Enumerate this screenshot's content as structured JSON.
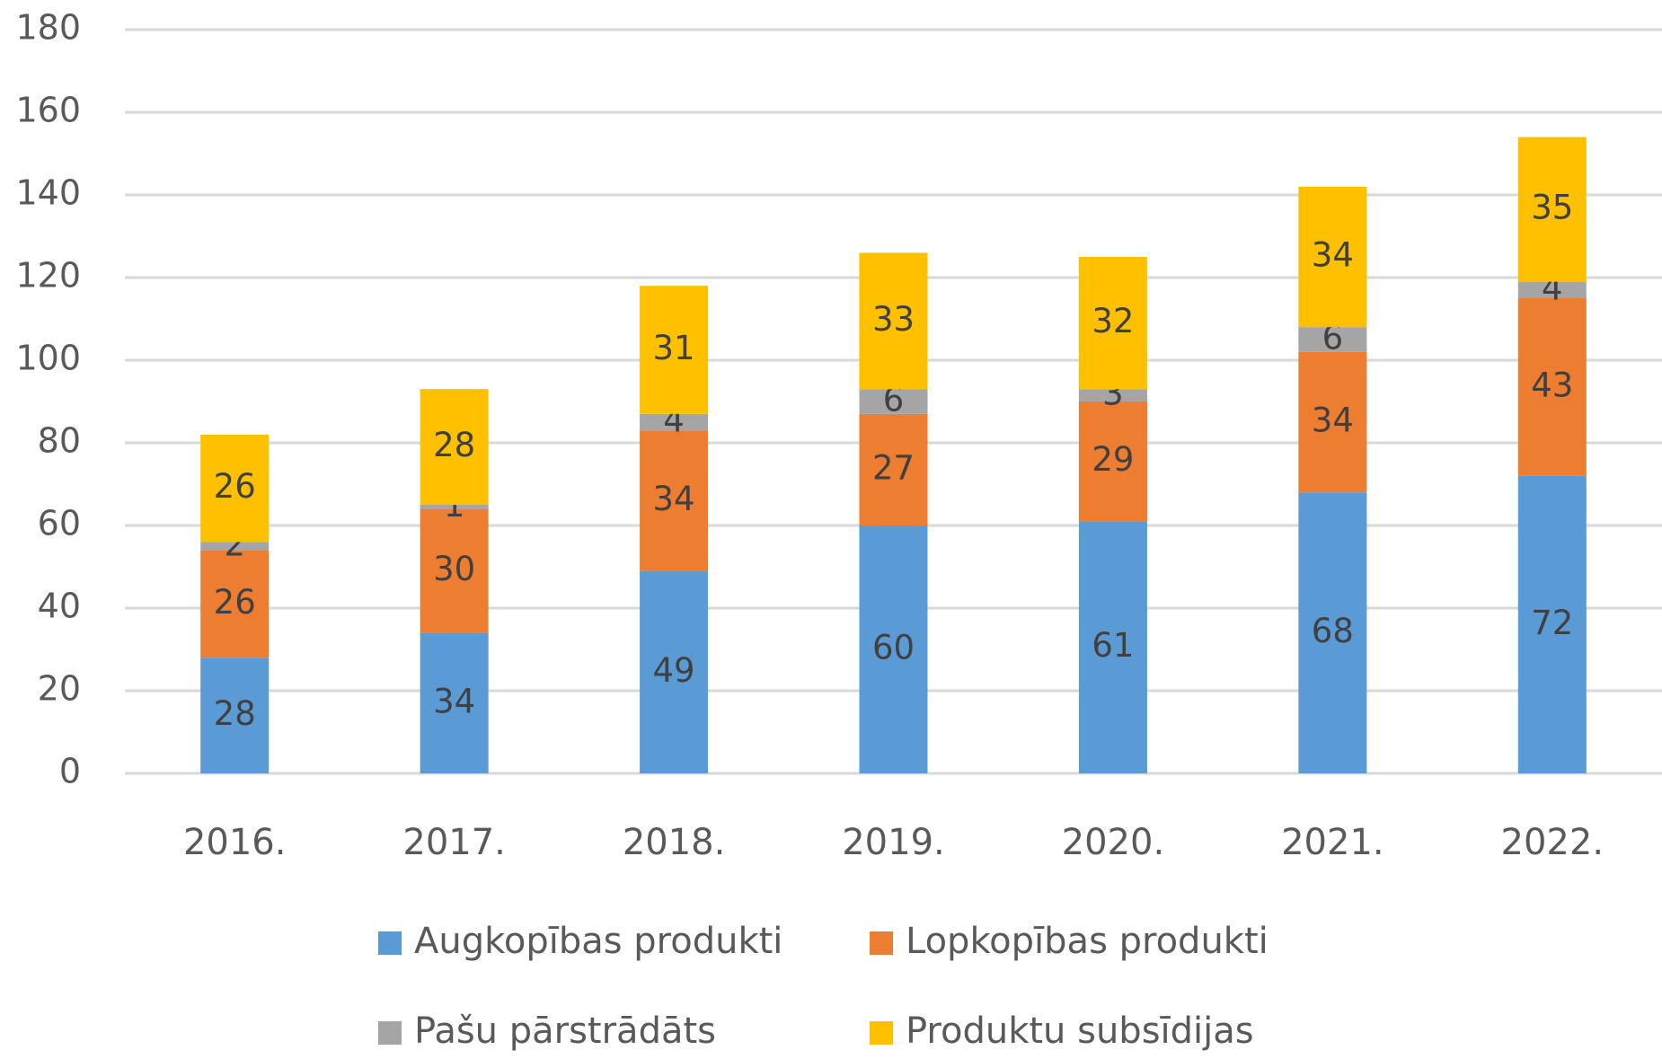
{
  "chart_data": {
    "type": "stacked_bar",
    "categories": [
      "2016.",
      "2017.",
      "2018.",
      "2019.",
      "2020.",
      "2021.",
      "2022."
    ],
    "series": [
      {
        "name": "Augkopības produkti",
        "color": "#5b9bd5",
        "values": [
          28,
          34,
          49,
          60,
          61,
          68,
          72
        ]
      },
      {
        "name": "Lopkopības produkti",
        "color": "#ed7d31",
        "values": [
          26,
          30,
          34,
          27,
          29,
          34,
          43
        ]
      },
      {
        "name": "Pašu pārstrādāts",
        "color": "#a5a5a5",
        "values": [
          2,
          1,
          4,
          6,
          3,
          6,
          4
        ]
      },
      {
        "name": "Produktu subsīdijas",
        "color": "#ffc000",
        "values": [
          26,
          28,
          31,
          33,
          32,
          34,
          35
        ]
      }
    ],
    "ylim": [
      0,
      180
    ],
    "yticks": [
      0,
      20,
      40,
      60,
      80,
      100,
      120,
      140,
      160,
      180
    ],
    "grid": true,
    "legend": "bottom"
  }
}
